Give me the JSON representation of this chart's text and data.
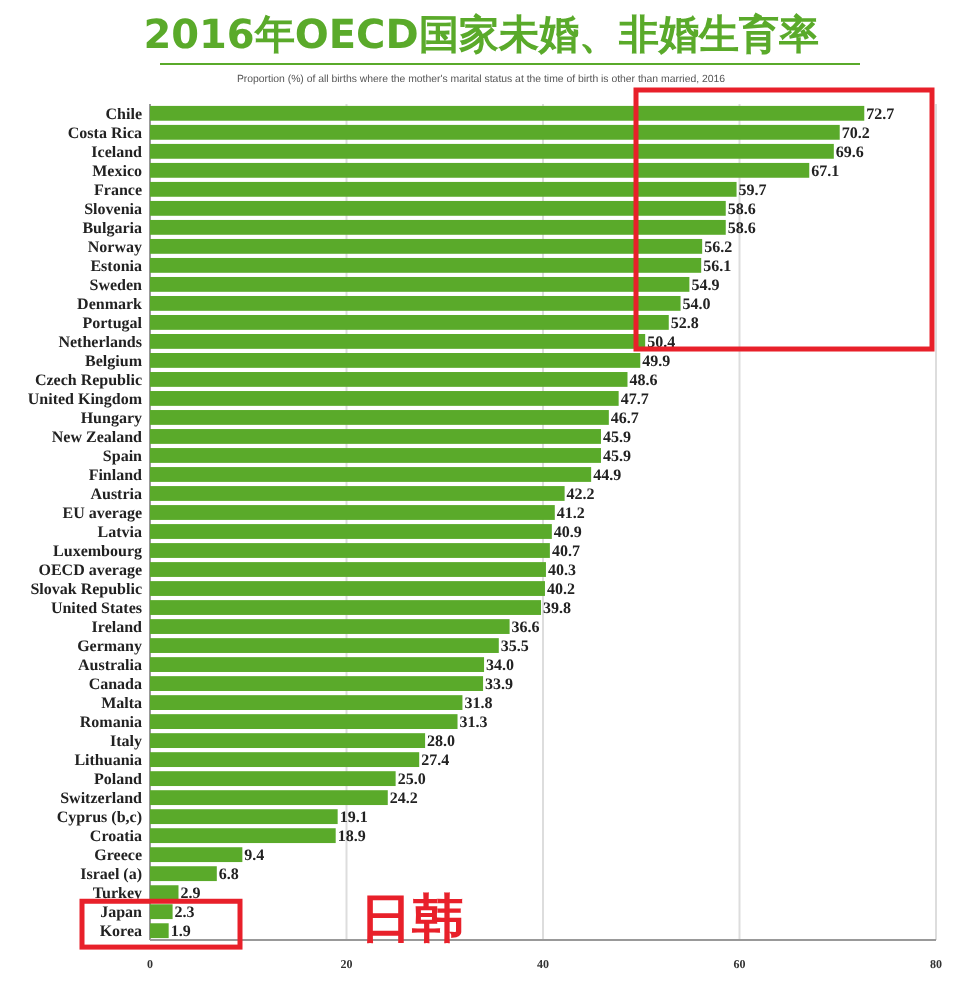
{
  "chart_data": {
    "type": "bar",
    "orientation": "horizontal",
    "title": "2016年OECD国家未婚、非婚生育率",
    "subtitle": "Proportion (%) of all births where the mother's marital status at the time of birth is other than married, 2016",
    "categories": [
      "Chile",
      "Costa Rica",
      "Iceland",
      "Mexico",
      "France",
      "Slovenia",
      "Bulgaria",
      "Norway",
      "Estonia",
      "Sweden",
      "Denmark",
      "Portugal",
      "Netherlands",
      "Belgium",
      "Czech Republic",
      "United Kingdom",
      "Hungary",
      "New Zealand",
      "Spain",
      "Finland",
      "Austria",
      "EU average",
      "Latvia",
      "Luxembourg",
      "OECD average",
      "Slovak Republic",
      "United States",
      "Ireland",
      "Germany",
      "Australia",
      "Canada",
      "Malta",
      "Romania",
      "Italy",
      "Lithuania",
      "Poland",
      "Switzerland",
      "Cyprus (b,c)",
      "Croatia",
      "Greece",
      "Israel (a)",
      "Turkey",
      "Japan",
      "Korea"
    ],
    "values": [
      72.7,
      70.2,
      69.6,
      67.1,
      59.7,
      58.6,
      58.6,
      56.2,
      56.1,
      54.9,
      54.0,
      52.8,
      50.4,
      49.9,
      48.6,
      47.7,
      46.7,
      45.9,
      45.9,
      44.9,
      42.2,
      41.2,
      40.9,
      40.7,
      40.3,
      40.2,
      39.8,
      36.6,
      35.5,
      34.0,
      33.9,
      31.8,
      31.3,
      28.0,
      27.4,
      25.0,
      24.2,
      19.1,
      18.9,
      9.4,
      6.8,
      2.9,
      2.3,
      1.9
    ],
    "value_labels": [
      "72.7",
      "70.2",
      "69.6",
      "67.1",
      "59.7",
      "58.6",
      "58.6",
      "56.2",
      "56.1",
      "54.9",
      "54.0",
      "52.8",
      "50.4",
      "49.9",
      "48.6",
      "47.7",
      "46.7",
      "45.9",
      "45.9",
      "44.9",
      "42.2",
      "41.2",
      "40.9",
      "40.7",
      "40.3",
      "40.2",
      "39.8",
      "36.6",
      "35.5",
      "34.0",
      "33.9",
      "31.8",
      "31.3",
      "28.0",
      "27.4",
      "25.0",
      "24.2",
      "19.1",
      "18.9",
      "9.4",
      "6.8",
      "2.9",
      "2.3",
      "1.9"
    ],
    "color": "#5aaa2a",
    "xlim": [
      0,
      80
    ],
    "xticks": [
      0,
      20,
      40,
      60,
      80
    ],
    "grid": "x",
    "annotations": [
      "日韩"
    ]
  }
}
